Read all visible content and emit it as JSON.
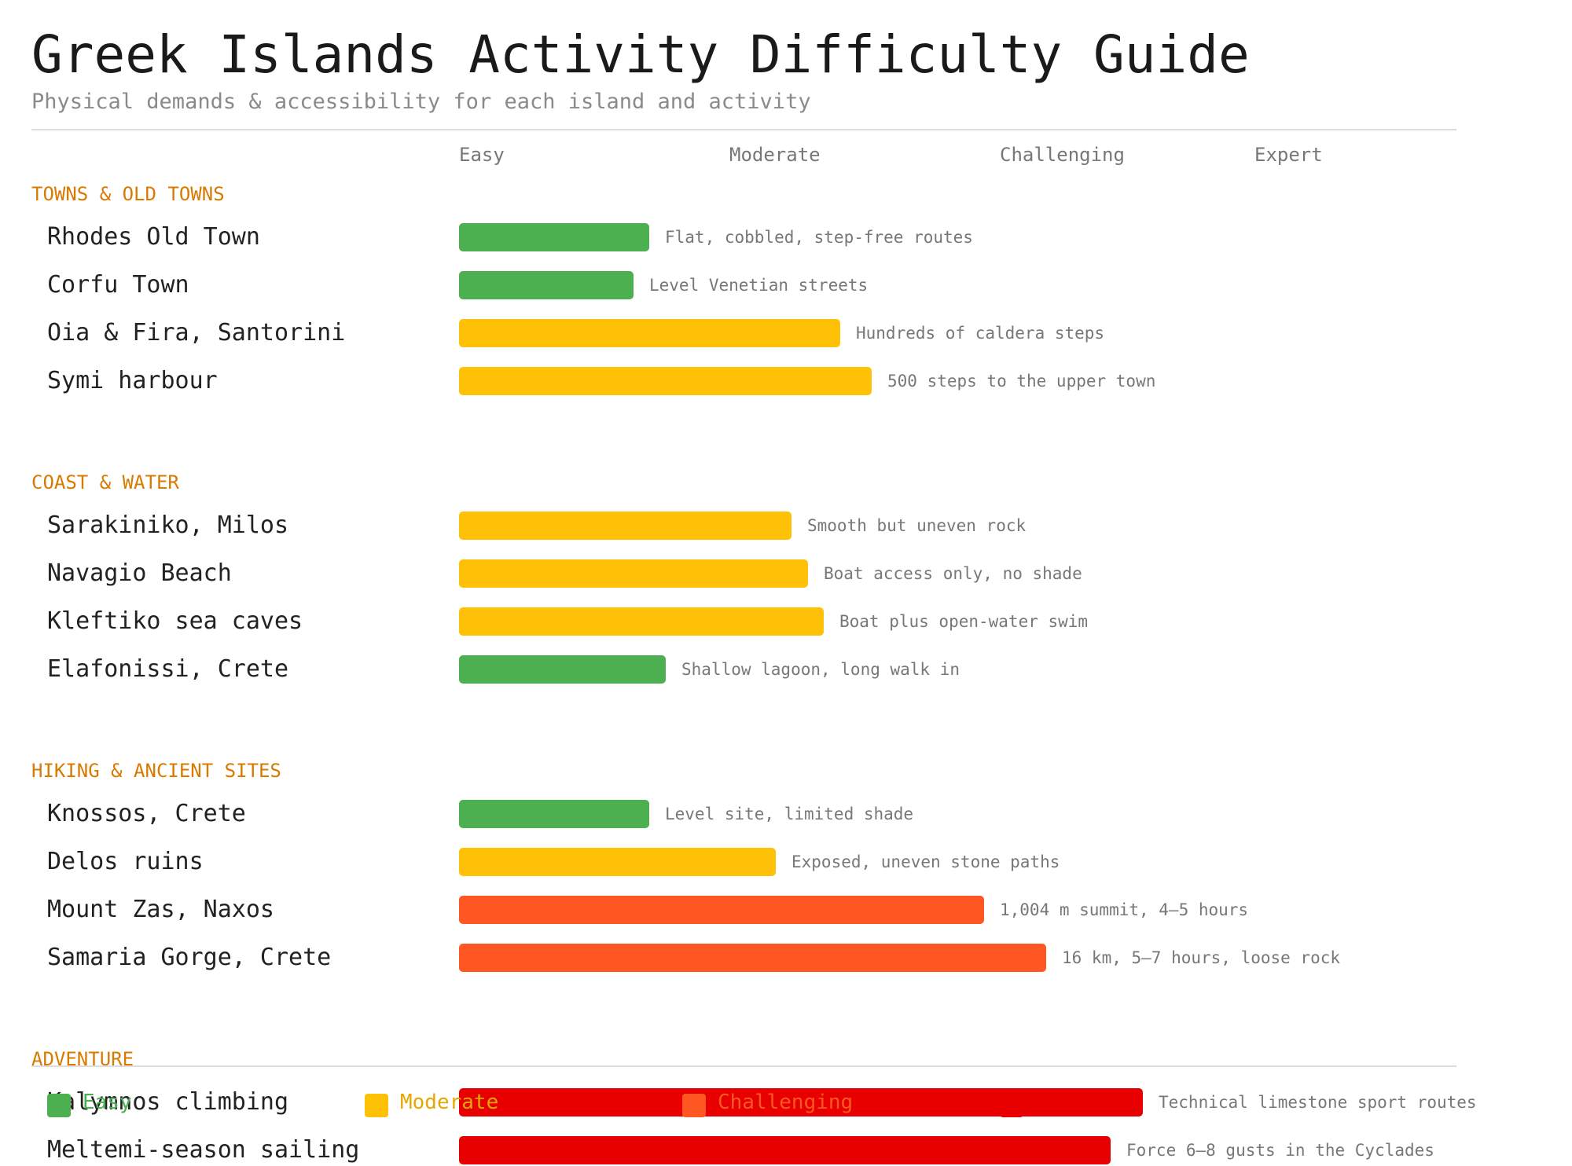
{
  "chart_data": {
    "type": "bar",
    "orientation": "horizontal",
    "title": "Greek Islands Activity Difficulty Guide",
    "subtitle": "Physical demands & accessibility for each island and activity",
    "scale_labels": [
      "Easy",
      "Moderate",
      "Challenging",
      "Expert"
    ],
    "scale_max": 4,
    "colors": {
      "Easy": "#4caf50",
      "Moderate": "#ffc107",
      "Challenging": "#ff5722",
      "Expert": "#e80000"
    },
    "groups": [
      {
        "name": "TOWNS & OLD TOWNS",
        "items": [
          {
            "label": "Rhodes Old Town",
            "value": 0.95,
            "level": "Easy",
            "note": "Flat, cobbled, step-free routes"
          },
          {
            "label": "Corfu Town",
            "value": 0.87,
            "level": "Easy",
            "note": "Level Venetian streets"
          },
          {
            "label": "Oia & Fira, Santorini",
            "value": 1.9,
            "level": "Moderate",
            "note": "Hundreds of caldera steps"
          },
          {
            "label": "Symi harbour",
            "value": 2.06,
            "level": "Moderate",
            "note": "500 steps to the upper town"
          }
        ]
      },
      {
        "name": "COAST & WATER",
        "items": [
          {
            "label": "Sarakiniko, Milos",
            "value": 1.66,
            "level": "Moderate",
            "note": "Smooth but uneven rock"
          },
          {
            "label": "Navagio Beach",
            "value": 1.74,
            "level": "Moderate",
            "note": "Boat access only, no shade"
          },
          {
            "label": "Kleftiko sea caves",
            "value": 1.82,
            "level": "Moderate",
            "note": "Boat plus open-water swim"
          },
          {
            "label": "Elafonissi, Crete",
            "value": 1.03,
            "level": "Easy",
            "note": "Shallow lagoon, long walk in"
          }
        ]
      },
      {
        "name": "HIKING & ANCIENT SITES",
        "items": [
          {
            "label": "Knossos, Crete",
            "value": 0.95,
            "level": "Easy",
            "note": "Level site, limited shade"
          },
          {
            "label": "Delos ruins",
            "value": 1.58,
            "level": "Moderate",
            "note": "Exposed, uneven stone paths"
          },
          {
            "label": "Mount Zas, Naxos",
            "value": 2.62,
            "level": "Challenging",
            "note": "1,004 m summit, 4–5 hours"
          },
          {
            "label": "Samaria Gorge, Crete",
            "value": 2.93,
            "level": "Challenging",
            "note": "16 km, 5–7 hours, loose rock"
          }
        ]
      },
      {
        "name": "ADVENTURE",
        "items": [
          {
            "label": "Kalymnos climbing",
            "value": 3.41,
            "level": "Expert",
            "note": "Technical limestone sport routes"
          },
          {
            "label": "Meltemi-season sailing",
            "value": 3.25,
            "level": "Expert",
            "note": "Force 6–8 gusts in the Cyclades"
          }
        ]
      }
    ],
    "legend": [
      "Easy",
      "Moderate",
      "Challenging",
      "Expert"
    ]
  }
}
